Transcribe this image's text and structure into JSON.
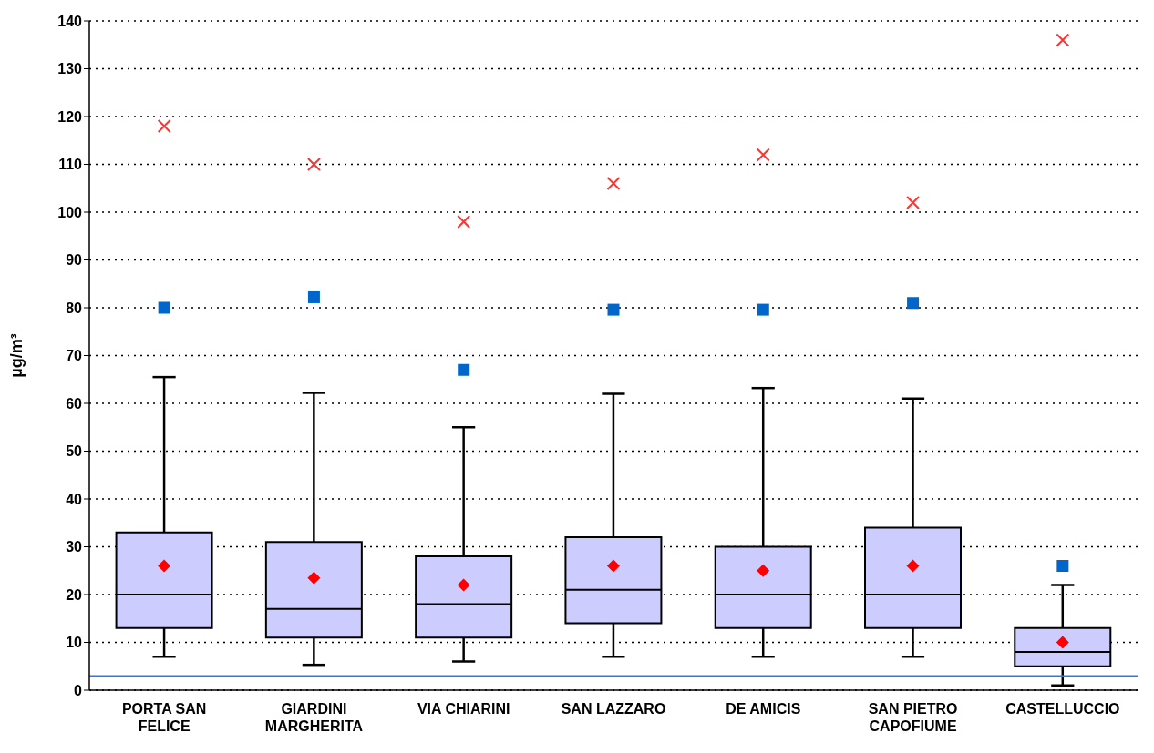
{
  "chart_data": {
    "type": "box",
    "ylabel": "µg/m³",
    "categories": [
      "PORTA SAN FELICE",
      "GIARDINI MARGHERITA",
      "VIA CHIARINI",
      "SAN LAZZARO",
      "DE AMICIS",
      "SAN PIETRO CAPOFIUME",
      "CASTELLUCCIO"
    ],
    "series": [
      {
        "color": "#ccccff",
        "boxes": [
          {
            "low": 7,
            "q1": 13,
            "median": 20,
            "q3": 33,
            "high": 65.5,
            "mean": 26
          },
          {
            "low": 5.3,
            "q1": 11,
            "median": 17,
            "q3": 31,
            "high": 62.2,
            "mean": 23.5
          },
          {
            "low": 6,
            "q1": 11,
            "median": 18,
            "q3": 28,
            "high": 55,
            "mean": 22
          },
          {
            "low": 7,
            "q1": 14,
            "median": 21,
            "q3": 32,
            "high": 62,
            "mean": 26
          },
          {
            "low": 7,
            "q1": 13,
            "median": 20,
            "q3": 30,
            "high": 63.2,
            "mean": 25
          },
          {
            "low": 7,
            "q1": 13,
            "median": 20,
            "q3": 34,
            "high": 61,
            "mean": 26
          },
          {
            "low": 1,
            "q1": 5,
            "median": 8,
            "q3": 13,
            "high": 22,
            "mean": 10
          }
        ]
      },
      {
        "type": "scatter",
        "color": "#0066cc",
        "marker": "square",
        "x": [
          "PORTA SAN FELICE",
          "GIARDINI MARGHERITA",
          "VIA CHIARINI",
          "SAN LAZZARO",
          "DE AMICIS",
          "SAN PIETRO CAPOFIUME",
          "CASTELLUCCIO"
        ],
        "values": [
          80,
          82.2,
          67,
          79.6,
          79.6,
          81,
          26
        ]
      },
      {
        "type": "scatter",
        "color": "#ff3333",
        "marker": "cross",
        "x": [
          "PORTA SAN FELICE",
          "GIARDINI MARGHERITA",
          "VIA CHIARINI",
          "SAN LAZZARO",
          "DE AMICIS",
          "SAN PIETRO CAPOFIUME",
          "CASTELLUCCIO"
        ],
        "values": [
          118,
          110,
          98,
          106,
          112,
          102,
          136
        ]
      }
    ],
    "ylim": [
      0,
      140
    ],
    "yticks": [
      0,
      10,
      20,
      30,
      40,
      50,
      60,
      70,
      80,
      90,
      100,
      110,
      120,
      130,
      140
    ],
    "grid": "y",
    "ref_lines": [
      {
        "axis": "y",
        "value": 3,
        "color": "#4472c4",
        "line_style": "solid"
      }
    ]
  }
}
